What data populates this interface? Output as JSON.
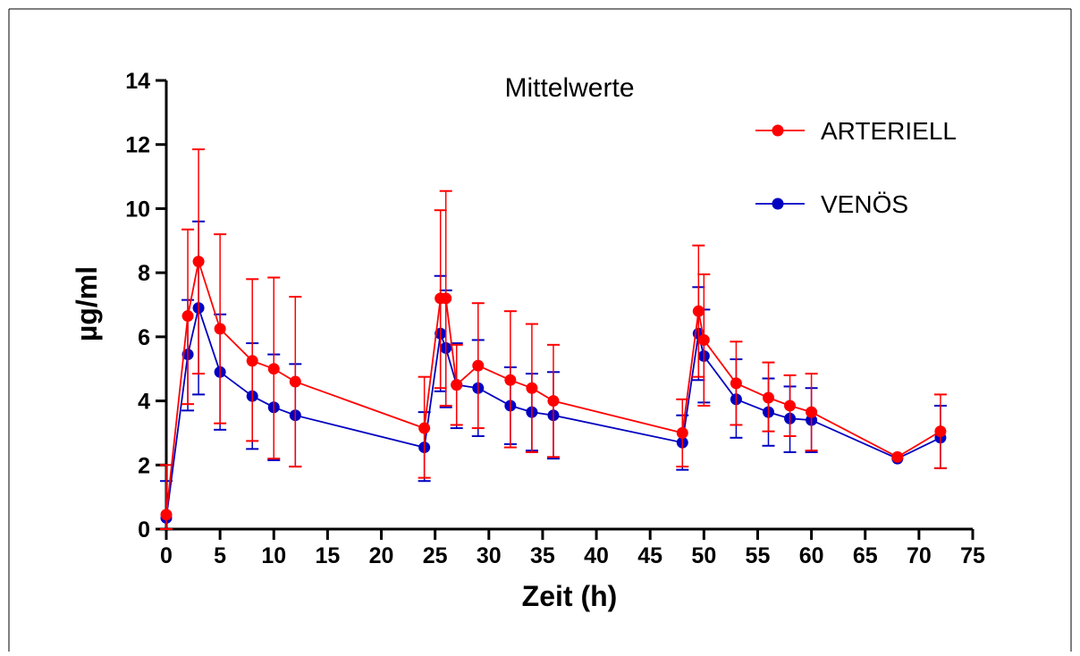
{
  "chart_data": {
    "type": "line",
    "title": "Mittelwerte",
    "xlabel": "Zeit (h)",
    "ylabel": "µg/ml",
    "xlim": [
      0,
      75
    ],
    "ylim": [
      0,
      14
    ],
    "x_ticks": [
      0,
      5,
      10,
      15,
      20,
      25,
      30,
      35,
      40,
      45,
      50,
      55,
      60,
      65,
      70,
      75
    ],
    "y_ticks": [
      0,
      2,
      4,
      6,
      8,
      10,
      12,
      14
    ],
    "grid": false,
    "legend_position": "top-right",
    "error_bars": true,
    "series": [
      {
        "name": "ARTERIELL",
        "color": "#ff0000",
        "points": [
          {
            "x": 0,
            "y": 0.45,
            "lo": 0.0,
            "hi": 2.0
          },
          {
            "x": 2,
            "y": 6.65,
            "lo": 3.9,
            "hi": 9.35
          },
          {
            "x": 3,
            "y": 8.35,
            "lo": 4.85,
            "hi": 11.85
          },
          {
            "x": 5,
            "y": 6.25,
            "lo": 3.3,
            "hi": 9.2
          },
          {
            "x": 8,
            "y": 5.25,
            "lo": 2.75,
            "hi": 7.8
          },
          {
            "x": 10,
            "y": 5.0,
            "lo": 2.2,
            "hi": 7.85
          },
          {
            "x": 12,
            "y": 4.6,
            "lo": 1.95,
            "hi": 7.25
          },
          {
            "x": 24,
            "y": 3.15,
            "lo": 1.6,
            "hi": 4.75
          },
          {
            "x": 25.5,
            "y": 7.2,
            "lo": 4.4,
            "hi": 9.95
          },
          {
            "x": 26,
            "y": 7.2,
            "lo": 3.85,
            "hi": 10.55
          },
          {
            "x": 27,
            "y": 4.5,
            "lo": 3.25,
            "hi": 5.75
          },
          {
            "x": 29,
            "y": 5.1,
            "lo": 3.15,
            "hi": 7.05
          },
          {
            "x": 32,
            "y": 4.65,
            "lo": 2.55,
            "hi": 6.8
          },
          {
            "x": 34,
            "y": 4.4,
            "lo": 2.4,
            "hi": 6.4
          },
          {
            "x": 36,
            "y": 4.0,
            "lo": 2.25,
            "hi": 5.75
          },
          {
            "x": 48,
            "y": 3.0,
            "lo": 1.95,
            "hi": 4.05
          },
          {
            "x": 49.5,
            "y": 6.8,
            "lo": 4.75,
            "hi": 8.85
          },
          {
            "x": 50,
            "y": 5.9,
            "lo": 3.85,
            "hi": 7.95
          },
          {
            "x": 53,
            "y": 4.55,
            "lo": 3.25,
            "hi": 5.85
          },
          {
            "x": 56,
            "y": 4.1,
            "lo": 3.05,
            "hi": 5.2
          },
          {
            "x": 58,
            "y": 3.85,
            "lo": 2.9,
            "hi": 4.8
          },
          {
            "x": 60,
            "y": 3.65,
            "lo": 2.45,
            "hi": 4.85
          },
          {
            "x": 68,
            "y": 2.25,
            "lo": 2.25,
            "hi": 2.25
          },
          {
            "x": 72,
            "y": 3.05,
            "lo": 1.9,
            "hi": 4.2
          }
        ]
      },
      {
        "name": "VENÖS",
        "color": "#0000c0",
        "points": [
          {
            "x": 0,
            "y": 0.35,
            "lo": 0.0,
            "hi": 1.5
          },
          {
            "x": 2,
            "y": 5.45,
            "lo": 3.7,
            "hi": 7.15
          },
          {
            "x": 3,
            "y": 6.9,
            "lo": 4.2,
            "hi": 9.6
          },
          {
            "x": 5,
            "y": 4.9,
            "lo": 3.1,
            "hi": 6.7
          },
          {
            "x": 8,
            "y": 4.15,
            "lo": 2.5,
            "hi": 5.8
          },
          {
            "x": 10,
            "y": 3.8,
            "lo": 2.15,
            "hi": 5.45
          },
          {
            "x": 12,
            "y": 3.55,
            "lo": 1.95,
            "hi": 5.15
          },
          {
            "x": 24,
            "y": 2.55,
            "lo": 1.5,
            "hi": 3.65
          },
          {
            "x": 25.5,
            "y": 6.1,
            "lo": 4.3,
            "hi": 7.9
          },
          {
            "x": 26,
            "y": 5.65,
            "lo": 3.8,
            "hi": 7.45
          },
          {
            "x": 27,
            "y": 4.5,
            "lo": 3.15,
            "hi": 5.8
          },
          {
            "x": 29,
            "y": 4.4,
            "lo": 2.9,
            "hi": 5.9
          },
          {
            "x": 32,
            "y": 3.85,
            "lo": 2.65,
            "hi": 5.05
          },
          {
            "x": 34,
            "y": 3.65,
            "lo": 2.45,
            "hi": 4.85
          },
          {
            "x": 36,
            "y": 3.55,
            "lo": 2.2,
            "hi": 4.9
          },
          {
            "x": 48,
            "y": 2.7,
            "lo": 1.85,
            "hi": 3.55
          },
          {
            "x": 49.5,
            "y": 6.1,
            "lo": 4.65,
            "hi": 7.55
          },
          {
            "x": 50,
            "y": 5.4,
            "lo": 3.95,
            "hi": 6.85
          },
          {
            "x": 53,
            "y": 4.05,
            "lo": 2.85,
            "hi": 5.3
          },
          {
            "x": 56,
            "y": 3.65,
            "lo": 2.6,
            "hi": 4.7
          },
          {
            "x": 58,
            "y": 3.45,
            "lo": 2.4,
            "hi": 4.45
          },
          {
            "x": 60,
            "y": 3.4,
            "lo": 2.4,
            "hi": 4.4
          },
          {
            "x": 68,
            "y": 2.2,
            "lo": 2.2,
            "hi": 2.2
          },
          {
            "x": 72,
            "y": 2.85,
            "lo": 1.9,
            "hi": 3.85
          }
        ]
      }
    ]
  }
}
